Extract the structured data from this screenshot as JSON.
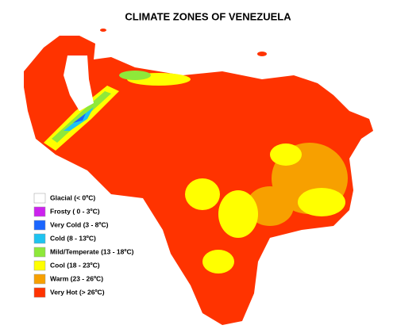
{
  "title": "CLIMATE ZONES OF VENEZUELA",
  "legend": [
    {
      "label": "Glacial (< 0ºC)",
      "color": "#ffffff"
    },
    {
      "label": "Frosty ( 0 - 3ºC)",
      "color": "#cc22ee"
    },
    {
      "label": "Very Cold (3 - 8ºC)",
      "color": "#1a66ff"
    },
    {
      "label": "Cold (8 - 13ºC)",
      "color": "#1ec3f0"
    },
    {
      "label": "Mild/Temperate (13 - 18ºC)",
      "color": "#8ee83a"
    },
    {
      "label": "Cool (18 - 23ºC)",
      "color": "#ffff00"
    },
    {
      "label": "Warm (23 - 26ºC)",
      "color": "#f7a000"
    },
    {
      "label": "Very Hot (> 26ºC)",
      "color": "#ff3300"
    }
  ]
}
